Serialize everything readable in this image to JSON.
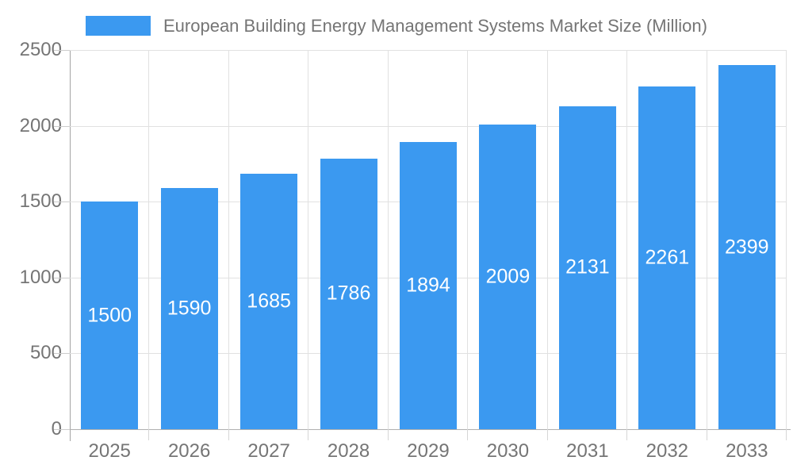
{
  "legend": {
    "label": "European Building Energy Management Systems Market Size (Million)"
  },
  "chart_data": {
    "type": "bar",
    "title": "European Building Energy Management Systems Market Size (Million)",
    "categories": [
      "2025",
      "2026",
      "2027",
      "2028",
      "2029",
      "2030",
      "2031",
      "2032",
      "2033"
    ],
    "values": [
      1500,
      1590,
      1685,
      1786,
      1894,
      2009,
      2131,
      2261,
      2399
    ],
    "xlabel": "",
    "ylabel": "",
    "ylim": [
      0,
      2500
    ],
    "yticks": [
      0,
      500,
      1000,
      1500,
      2000,
      2500
    ],
    "grid": true,
    "legend_position": "top-center",
    "bar_color": "#3b99f0",
    "value_label_color": "#ffffff",
    "axis_text_color": "#757575",
    "gridline_color": "#e1e1e1",
    "axis_line_color": "#a3a3a3"
  }
}
